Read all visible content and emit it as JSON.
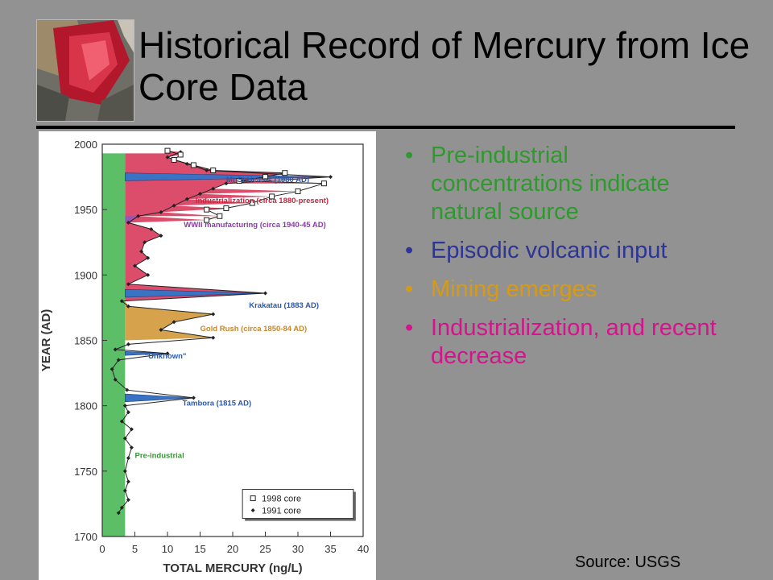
{
  "slide": {
    "title": "Historical Record of Mercury from Ice Core Data",
    "source": "Source: USGS",
    "photo_icon": "mineral-crystal-photo",
    "bullets": [
      {
        "text": "Pre-industrial concentrations indicate natural source",
        "color": "#2e9a2e"
      },
      {
        "text": "Episodic volcanic input",
        "color": "#2e3596"
      },
      {
        "text": "Mining emerges",
        "color": "#d69b16"
      },
      {
        "text": "Industrialization, and recent decrease",
        "color": "#d4148c"
      }
    ]
  },
  "chart_data": {
    "type": "line",
    "xlabel": "TOTAL MERCURY (ng/L)",
    "ylabel": "YEAR (AD)",
    "xlim": [
      0,
      40
    ],
    "ylim": [
      1700,
      2000
    ],
    "xticks": [
      0,
      5,
      10,
      15,
      20,
      25,
      30,
      35,
      40
    ],
    "yticks": [
      1700,
      1750,
      1800,
      1850,
      1900,
      1950,
      2000
    ],
    "legend": {
      "position": "bottom-right",
      "entries": [
        "1998 core",
        "1991 core"
      ]
    },
    "series": [
      {
        "name": "1998 core",
        "marker": "square",
        "points": [
          [
            16,
            1942
          ],
          [
            18,
            1945
          ],
          [
            16,
            1950
          ],
          [
            19,
            1951
          ],
          [
            23,
            1955
          ],
          [
            26,
            1960
          ],
          [
            30,
            1964
          ],
          [
            34,
            1970
          ],
          [
            21,
            1972
          ],
          [
            25,
            1975
          ],
          [
            28,
            1978
          ],
          [
            17,
            1980
          ],
          [
            14,
            1984
          ],
          [
            11,
            1988
          ],
          [
            12,
            1992
          ],
          [
            10,
            1995
          ]
        ]
      },
      {
        "name": "1991 core",
        "marker": "diamond",
        "points": [
          [
            2.5,
            1718
          ],
          [
            3,
            1722
          ],
          [
            4,
            1728
          ],
          [
            3.5,
            1735
          ],
          [
            4,
            1742
          ],
          [
            3.5,
            1750
          ],
          [
            4,
            1760
          ],
          [
            4.5,
            1768
          ],
          [
            3.5,
            1775
          ],
          [
            4.5,
            1782
          ],
          [
            3,
            1788
          ],
          [
            4,
            1795
          ],
          [
            3.5,
            1800
          ],
          [
            14,
            1806
          ],
          [
            3.8,
            1812
          ],
          [
            2,
            1820
          ],
          [
            1.5,
            1828
          ],
          [
            2.5,
            1835
          ],
          [
            10,
            1840
          ],
          [
            2,
            1843
          ],
          [
            4,
            1847
          ],
          [
            17,
            1852
          ],
          [
            9,
            1858
          ],
          [
            11,
            1864
          ],
          [
            17,
            1870
          ],
          [
            4,
            1876
          ],
          [
            3,
            1880
          ],
          [
            25,
            1886
          ],
          [
            4,
            1893
          ],
          [
            7,
            1900
          ],
          [
            5,
            1907
          ],
          [
            7,
            1913
          ],
          [
            6,
            1918
          ],
          [
            6.5,
            1925
          ],
          [
            9,
            1930
          ],
          [
            7.5,
            1935
          ],
          [
            4,
            1940
          ],
          [
            5.5,
            1945
          ],
          [
            9,
            1948
          ],
          [
            11,
            1953
          ],
          [
            13,
            1958
          ],
          [
            15,
            1962
          ],
          [
            17,
            1966
          ],
          [
            19,
            1970
          ],
          [
            35,
            1975
          ],
          [
            16,
            1980
          ],
          [
            13,
            1985
          ],
          [
            10,
            1990
          ],
          [
            12,
            1994
          ]
        ]
      }
    ],
    "periods": [
      {
        "label": "Pre-industrial",
        "start": 1700,
        "end": 1993,
        "color": "#5cbf68"
      },
      {
        "label": "Industrialization (circa 1880-present)",
        "start": 1880,
        "end": 1993,
        "color": "#dc4d6c"
      },
      {
        "label": "WWII manufacturing (circa 1940-45 AD)",
        "start": 1940,
        "end": 1945,
        "color": "#9b54b4"
      },
      {
        "label": "Gold Rush (circa 1850-84 AD)",
        "start": 1850,
        "end": 1884,
        "color": "#d6a24c"
      }
    ],
    "events": [
      {
        "label": "Mt St Helens (1980 AD)",
        "year": 1980,
        "color": "#3a72c4"
      },
      {
        "label": "Krakatau (1883 AD)",
        "year": 1883,
        "color": "#3a72c4"
      },
      {
        "label": "\"Unknown\"",
        "year": 1840,
        "color": "#3a72c4"
      },
      {
        "label": "Tambora (1815 AD)",
        "year": 1815,
        "color": "#3a72c4"
      }
    ]
  }
}
